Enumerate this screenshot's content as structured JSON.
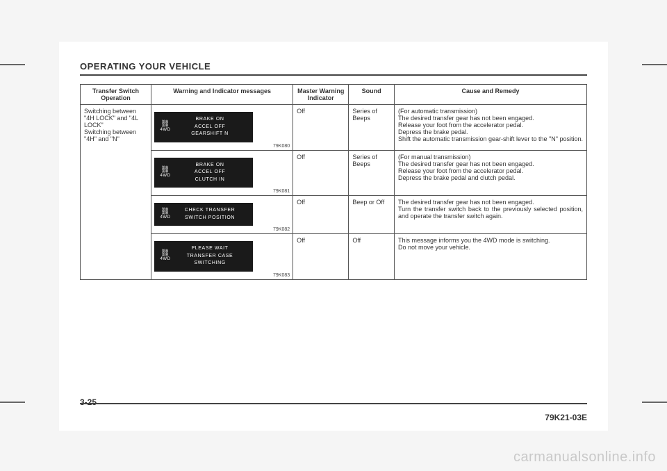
{
  "section_title": "OPERATING YOUR VEHICLE",
  "page_number": "3-25",
  "doc_code": "79K21-03E",
  "watermark": "carmanualsonline.info",
  "table": {
    "headers": {
      "c1": "Transfer Switch Operation",
      "c2": "Warning and Indicator messages",
      "c3": "Master Warning Indicator",
      "c4": "Sound",
      "c5": "Cause and Remedy"
    },
    "operation_text": "Switching between \"4H LOCK\" and \"4L LOCK\"\nSwitching between \"4H\" and \"N\"",
    "icon_label": "4WD",
    "icon_symbol": "⛓",
    "rows": [
      {
        "panel_lines": "BRAKE ON\nACCEL OFF\nGEARSHIFT N",
        "fig": "79K080",
        "master": "Off",
        "sound": "Series of Beeps",
        "remedy": "(For automatic transmission)\nThe desired transfer gear has not been engaged.\nRelease your foot from the accelerator pedal.\nDepress the brake pedal.\nShift the automatic transmission gear-shift lever to the \"N\" position."
      },
      {
        "panel_lines": "BRAKE ON\nACCEL OFF\nCLUTCH IN",
        "fig": "79K081",
        "master": "Off",
        "sound": "Series of Beeps",
        "remedy": "(For manual transmission)\nThe desired transfer gear has not been engaged.\nRelease your foot from the accelerator pedal.\nDepress the brake pedal and clutch pedal."
      },
      {
        "panel_lines": "CHECK TRANSFER\nSWITCH POSITION",
        "fig": "79K082",
        "master": "Off",
        "sound": "Beep or Off",
        "remedy": "The desired transfer gear has not been engaged.\nTurn the transfer switch back to the previously selected position, and operate the transfer switch again."
      },
      {
        "panel_lines": "PLEASE WAIT\nTRANSFER CASE\nSWITCHING",
        "fig": "79K083",
        "master": "Off",
        "sound": "Off",
        "remedy": "This message informs you the 4WD mode is switching.\nDo not move your vehicle."
      }
    ]
  }
}
